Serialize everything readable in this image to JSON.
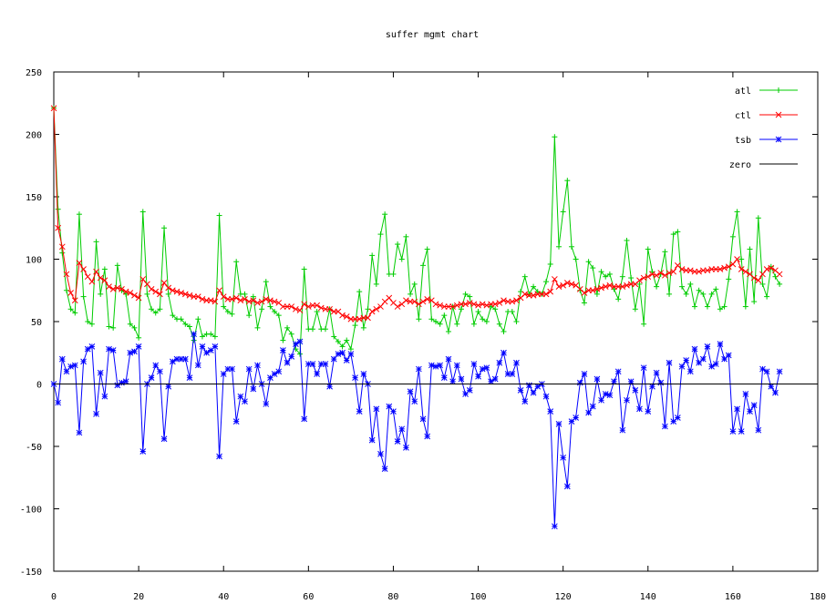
{
  "chart_data": {
    "type": "line",
    "title": "suffer mgmt chart",
    "xlabel": "",
    "ylabel": "",
    "xlim": [
      0,
      180
    ],
    "ylim": [
      -150,
      250
    ],
    "xticks": [
      0,
      20,
      40,
      60,
      80,
      100,
      120,
      140,
      160,
      180
    ],
    "yticks": [
      -150,
      -100,
      -50,
      0,
      50,
      100,
      150,
      200,
      250
    ],
    "legend_position": "top-right",
    "grid": false,
    "series": [
      {
        "name": "atl",
        "color": "#00cc00",
        "marker": "plus",
        "y": [
          221,
          140,
          105,
          75,
          60,
          57,
          136,
          70,
          50,
          48,
          114,
          72,
          92,
          46,
          45,
          95,
          75,
          72,
          48,
          45,
          37,
          138,
          72,
          60,
          57,
          60,
          125,
          72,
          55,
          52,
          52,
          48,
          46,
          35,
          52,
          38,
          40,
          40,
          38,
          135,
          62,
          58,
          56,
          98,
          72,
          72,
          55,
          70,
          45,
          60,
          82,
          62,
          58,
          55,
          35,
          45,
          40,
          28,
          24,
          92,
          44,
          44,
          58,
          44,
          44,
          60,
          38,
          34,
          30,
          35,
          28,
          47,
          74,
          45,
          60,
          103,
          80,
          120,
          136,
          88,
          88,
          112,
          100,
          118,
          72,
          80,
          52,
          95,
          108,
          52,
          50,
          48,
          55,
          42,
          62,
          48,
          60,
          72,
          70,
          48,
          58,
          52,
          50,
          62,
          60,
          48,
          42,
          58,
          58,
          50,
          74,
          86,
          72,
          78,
          74,
          72,
          82,
          96,
          198,
          110,
          138,
          163,
          110,
          100,
          75,
          65,
          98,
          93,
          72,
          90,
          86,
          88,
          76,
          68,
          86,
          115,
          85,
          60,
          80,
          48,
          108,
          90,
          78,
          88,
          106,
          72,
          120,
          122,
          78,
          72,
          80,
          62,
          75,
          72,
          62,
          72,
          76,
          60,
          62,
          84,
          118,
          138,
          100,
          62,
          108,
          66,
          133,
          80,
          70,
          94,
          86,
          80
        ]
      },
      {
        "name": "ctl",
        "color": "#ff0000",
        "marker": "x",
        "y": [
          221,
          125,
          110,
          88,
          73,
          67,
          97,
          92,
          86,
          82,
          90,
          85,
          83,
          78,
          76,
          77,
          76,
          74,
          73,
          71,
          69,
          84,
          80,
          76,
          74,
          72,
          81,
          77,
          75,
          74,
          73,
          72,
          71,
          70,
          70,
          68,
          67,
          67,
          66,
          75,
          70,
          68,
          68,
          69,
          67,
          68,
          66,
          67,
          65,
          66,
          68,
          67,
          66,
          65,
          62,
          62,
          62,
          60,
          59,
          64,
          62,
          63,
          63,
          61,
          60,
          60,
          58,
          58,
          55,
          54,
          52,
          52,
          52,
          53,
          53,
          58,
          60,
          62,
          66,
          69,
          65,
          62,
          64,
          67,
          66,
          66,
          64,
          66,
          68,
          67,
          64,
          63,
          62,
          62,
          62,
          63,
          64,
          64,
          65,
          64,
          63,
          64,
          63,
          64,
          64,
          65,
          67,
          66,
          66,
          67,
          69,
          72,
          71,
          71,
          72,
          72,
          72,
          74,
          84,
          78,
          79,
          81,
          80,
          79,
          76,
          73,
          75,
          75,
          76,
          77,
          78,
          79,
          78,
          78,
          78,
          79,
          80,
          80,
          83,
          85,
          86,
          88,
          87,
          89,
          87,
          89,
          90,
          95,
          92,
          91,
          91,
          90,
          90,
          91,
          91,
          92,
          92,
          92,
          93,
          94,
          96,
          100,
          92,
          90,
          88,
          85,
          83,
          88,
          92,
          93,
          91,
          88
        ]
      },
      {
        "name": "tsb",
        "color": "#0000ff",
        "marker": "star",
        "y": [
          0,
          -15,
          20,
          10,
          14,
          15,
          -39,
          18,
          28,
          30,
          -24,
          9,
          -10,
          28,
          27,
          -1,
          1,
          2,
          25,
          26,
          30,
          -54,
          0,
          5,
          15,
          10,
          -44,
          -2,
          18,
          20,
          20,
          20,
          5,
          40,
          15,
          30,
          25,
          27,
          30,
          -58,
          8,
          12,
          12,
          -30,
          -10,
          -14,
          12,
          -4,
          15,
          0,
          -16,
          5,
          8,
          10,
          27,
          17,
          22,
          32,
          34,
          -28,
          16,
          16,
          8,
          16,
          16,
          -2,
          20,
          24,
          25,
          19,
          24,
          5,
          -22,
          8,
          0,
          -45,
          -20,
          -56,
          -68,
          -18,
          -22,
          -46,
          -36,
          -51,
          -6,
          -14,
          12,
          -28,
          -42,
          15,
          14,
          15,
          5,
          20,
          2,
          15,
          4,
          -8,
          -5,
          16,
          6,
          12,
          13,
          2,
          4,
          17,
          25,
          8,
          8,
          17,
          -5,
          -14,
          -1,
          -7,
          -2,
          0,
          -10,
          -22,
          -114,
          -32,
          -59,
          -82,
          -30,
          -27,
          1,
          8,
          -23,
          -18,
          4,
          -13,
          -8,
          -9,
          2,
          10,
          -37,
          -13,
          2,
          -5,
          -20,
          13,
          -22,
          -2,
          9,
          1,
          -34,
          17,
          -30,
          -27,
          14,
          19,
          10,
          28,
          17,
          20,
          30,
          14,
          16,
          32,
          20,
          23,
          -38,
          -20,
          -38,
          -8,
          -22,
          -17,
          -37,
          12,
          10,
          -2,
          -7,
          10
        ]
      },
      {
        "name": "zero",
        "color": "#000000",
        "marker": "none",
        "y": null,
        "constant": 0
      }
    ]
  }
}
